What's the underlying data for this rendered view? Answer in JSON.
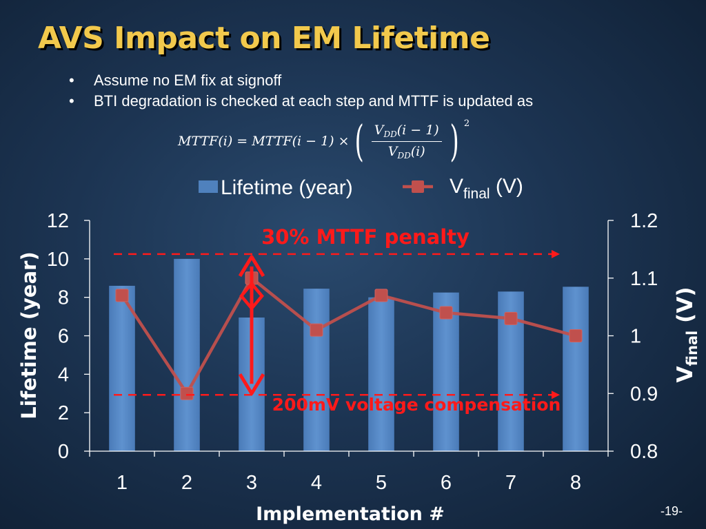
{
  "slide": {
    "title": "AVS Impact on EM Lifetime",
    "bullets": [
      "Assume no EM fix at signoff",
      "BTI degradation is checked at each step and MTTF is updated as"
    ],
    "formula": {
      "lhs": "MTTF(i) = MTTF(i − 1) ×",
      "num_var": "V",
      "num_sub": "DD",
      "num_arg": "(i − 1)",
      "den_var": "V",
      "den_sub": "DD",
      "den_arg": "(i)",
      "exponent": "2"
    },
    "page_number": "-19-"
  },
  "chart_data": {
    "type": "bar",
    "categories": [
      "1",
      "2",
      "3",
      "4",
      "5",
      "6",
      "7",
      "8"
    ],
    "series": [
      {
        "name": "Lifetime (year)",
        "type": "bar",
        "axis": "left",
        "color": "#4f81bd",
        "values": [
          8.6,
          10.0,
          6.95,
          8.45,
          8.0,
          8.25,
          8.3,
          8.55
        ]
      },
      {
        "name": "Vfinal (V)",
        "type": "line",
        "axis": "right",
        "color": "#c0504d",
        "values": [
          1.07,
          0.9,
          1.1,
          1.01,
          1.07,
          1.04,
          1.03,
          1.0
        ]
      }
    ],
    "legend": {
      "bar_label": "Lifetime (year)",
      "line_label_main": "V",
      "line_label_sub": "final",
      "line_label_unit": " (V)",
      "placement": "top-center"
    },
    "xlabel": "Implementation #",
    "ylabel_left": "Lifetime (year)",
    "ylabel_right_main": "V",
    "ylabel_right_sub": "final",
    "ylabel_right_unit": " (V)",
    "ylim_left": [
      0,
      12
    ],
    "yticks_left": [
      "0",
      "2",
      "4",
      "6",
      "8",
      "10",
      "12"
    ],
    "ylim_right": [
      0.8,
      1.2
    ],
    "yticks_right": [
      "0.8",
      "0.9",
      "1",
      "1.1",
      "1.2"
    ],
    "annotations": {
      "mttf_penalty": "30% MTTF penalty",
      "voltage_compensation": "200mV voltage compensation",
      "accent_color": "#ff1a1a",
      "upper_ref_lifetime": 10,
      "lower_ref_lifetime": 3
    },
    "grid": false
  }
}
